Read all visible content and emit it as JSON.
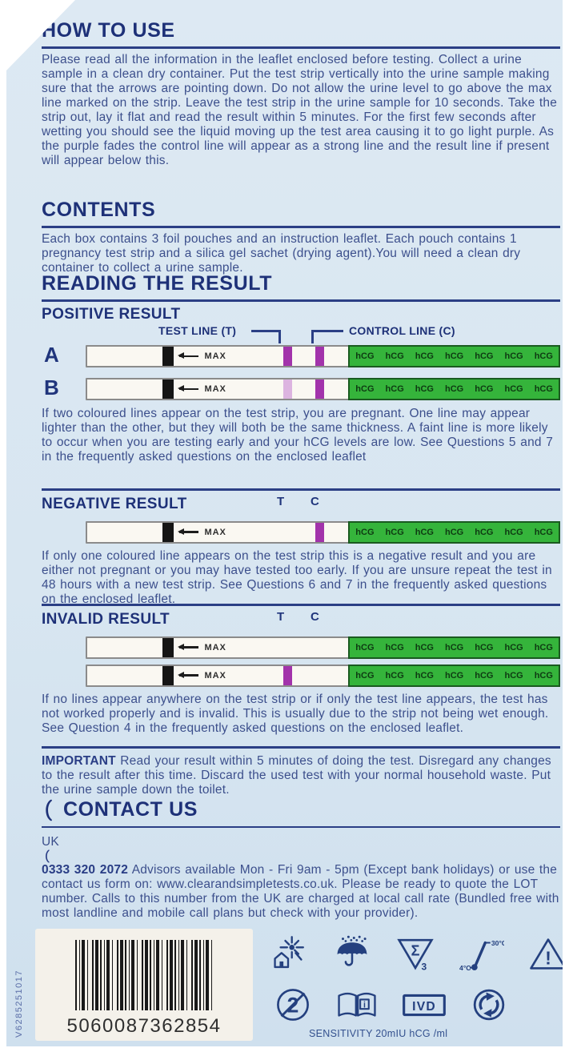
{
  "package": {
    "sections": {
      "how_to_use": {
        "title": "HOW TO USE",
        "body": "Please read all the information in the leaflet enclosed before testing. Collect a urine sample in a clean dry container. Put the test strip vertically into the urine sample making sure that the arrows are pointing down. Do not allow the urine level to go above the max line marked on the strip. Leave the test strip in the urine sample for 10 seconds. Take the strip out, lay it flat and read the result within 5 minutes. For the first few seconds after wetting you should see the liquid moving up the test area causing it to go light purple. As the purple fades the control line will appear as a strong line and the result line if present will appear below this."
      },
      "contents": {
        "title": "CONTENTS",
        "body": "Each box contains 3 foil pouches and an instruction leaflet. Each pouch contains 1 pregnancy test strip and a silica gel sachet (drying agent).You will need a clean dry container to collect a urine sample."
      },
      "reading_the_result": {
        "title": "READING THE RESULT"
      },
      "positive": {
        "title": "POSITIVE RESULT",
        "test_line_label": "TEST LINE (T)",
        "control_line_label": "CONTROL LINE (C)",
        "body": "If two coloured lines appear on the test strip, you are pregnant. One line may appear lighter than the other, but they will both be the same thickness. A faint line is more likely to occur when you are testing early and your hCG levels are low. See Questions 5 and 7 in the frequently asked questions on the enclosed leaflet"
      },
      "negative": {
        "title": "NEGATIVE RESULT",
        "body": "If only one coloured line appears on the test strip this is a negative result and you are either not pregnant or you may have tested too early. If you are unsure repeat the test in 48 hours with a new test strip. See Questions 6 and 7 in the frequently asked questions on the enclosed leaflet."
      },
      "invalid": {
        "title": "INVALID RESULT",
        "body": "If no lines appear anywhere on the test strip or if only the test line appears, the test has not worked properly and is invalid. This is usually due to the strip not being wet enough. See Question 4 in the frequently asked questions on the enclosed leaflet."
      },
      "important": {
        "label": "IMPORTANT",
        "body": " Read your result within 5 minutes of doing the test. Disregard any changes to the result after this time. Discard the used test with your normal household waste. Put the urine sample down the toilet."
      },
      "contact": {
        "title": "CONTACT US",
        "country": "UK",
        "phone": "0333 320 2072",
        "body": " Advisors available Mon - Fri 9am - 5pm (Except bank holidays) or use the contact us form on: www.clearandsimpletests.co.uk. Please be ready to quote the LOT number. Calls to this number from the UK are charged at local call rate (Bundled free with most landline and mobile call plans but check with your provider)."
      }
    },
    "labels": {
      "t": "T",
      "c": "C"
    },
    "strip": {
      "max_label": "MAX",
      "hcg_label": "hCG",
      "hcg_count": 7
    },
    "strips": {
      "positive": [
        {
          "letter": "A",
          "t": "strong",
          "c": "strong"
        },
        {
          "letter": "B",
          "t": "faint",
          "c": "strong"
        }
      ],
      "negative": {
        "t": "none",
        "c": "strong"
      },
      "invalid": [
        {
          "t": "none",
          "c": "none"
        },
        {
          "t": "strong",
          "c": "none"
        }
      ]
    },
    "footer": {
      "side_code": "V6285251017",
      "barcode_number": "5060087362854",
      "sensitivity_label": "SENSITIVITY",
      "sensitivity_value": "20mIU hCG /ml",
      "icons": {
        "temp_low": "4°C",
        "temp_high": "30°C",
        "sigma": "Σ",
        "test_count": "3",
        "caution_mark": "!",
        "no_reuse_number": "2",
        "book_info": "i",
        "ivd": "IVD"
      }
    },
    "colors": {
      "accent_navy": "#20357c",
      "body_text": "#3c4f8c",
      "purple_strong": "#a233ab",
      "purple_faint": "#dcb4e0",
      "hcg_green": "#35b43b",
      "hcg_green_dark": "#1a5a20",
      "package_bg": "#d9e7f1"
    }
  }
}
